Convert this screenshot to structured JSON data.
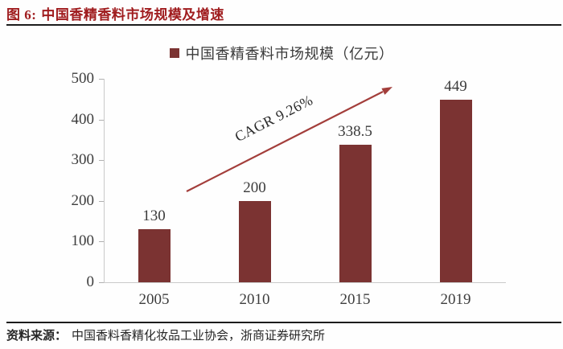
{
  "header": {
    "label": "图 6:",
    "title": "中国香精香料市场规模及增速"
  },
  "chart_data": {
    "type": "bar",
    "title": "中国香精香料市场规模及增速",
    "legend": "中国香精香料市场规模（亿元）",
    "legend_position": "top",
    "categories": [
      "2005",
      "2010",
      "2015",
      "2019"
    ],
    "values": [
      130,
      200,
      338.5,
      449
    ],
    "value_labels": [
      "130",
      "200",
      "338.5",
      "449"
    ],
    "ylim": [
      0,
      500
    ],
    "yticks": [
      0,
      100,
      200,
      300,
      400,
      500
    ],
    "grid": false,
    "annotation": "CAGR 9.26%",
    "bar_color": "#7b3332",
    "arrow_color": "#a33e3b"
  },
  "source": {
    "label": "资料来源：",
    "text": "中国香料香精化妆品工业协会，浙商证券研究所"
  },
  "colors": {
    "title_red": "#a01d1f",
    "bar": "#7b3332",
    "arrow": "#a33e3b",
    "rule": "#1c1c1c",
    "axis_line": "#c9c9c9",
    "tick": "#b0b0b0",
    "text": "#3d3d3d"
  }
}
